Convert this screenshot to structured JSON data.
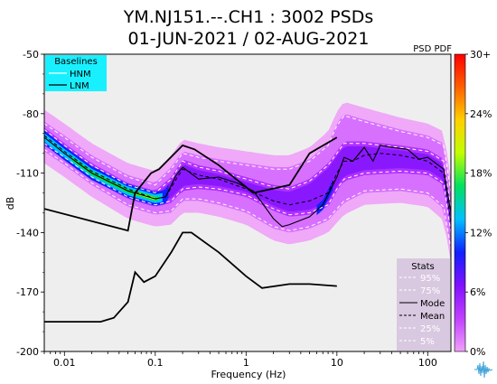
{
  "chart_data": {
    "type": "heatmap",
    "title": "YM.NJ151.--.CH1 : 3002 PSDs",
    "subtitle": "01-JUN-2021 / 02-AUG-2021",
    "xlabel": "Frequency (Hz)",
    "ylabel": "dB",
    "corner_label": "PSD PDF",
    "x_scale": "log",
    "xlim": [
      0.006,
      180
    ],
    "ylim": [
      -200,
      -50
    ],
    "x_ticks": [
      {
        "value": 0.01,
        "label": "0.01"
      },
      {
        "value": 0.1,
        "label": "0.1"
      },
      {
        "value": 1,
        "label": "1"
      },
      {
        "value": 10,
        "label": "10"
      },
      {
        "value": 100,
        "label": "100"
      }
    ],
    "y_ticks": [
      {
        "value": -50,
        "label": "-50"
      },
      {
        "value": -80,
        "label": "-80"
      },
      {
        "value": -110,
        "label": "-110"
      },
      {
        "value": -140,
        "label": "-140"
      },
      {
        "value": -170,
        "label": "-170"
      },
      {
        "value": -200,
        "label": "-200"
      }
    ],
    "colorbar": {
      "range": [
        0,
        30
      ],
      "unit": "%",
      "ticks": [
        {
          "value": 0,
          "label": "0%"
        },
        {
          "value": 6,
          "label": "6%"
        },
        {
          "value": 12,
          "label": "12%"
        },
        {
          "value": 18,
          "label": "18%"
        },
        {
          "value": 24,
          "label": "24%"
        },
        {
          "value": 30,
          "label": "30+"
        }
      ],
      "colors": [
        "#f0a0f8",
        "#c040ff",
        "#8010ff",
        "#1020ff",
        "#00c0ff",
        "#00e060",
        "#c0ff00",
        "#ffd000",
        "#ff6000",
        "#ff0000"
      ]
    },
    "legend_baselines": {
      "title": "Baselines",
      "entries": [
        {
          "name": "HNM",
          "color": "#ffffff"
        },
        {
          "name": "LNM",
          "color": "#000000"
        }
      ],
      "placement": "top-left",
      "background": "#19f0ff"
    },
    "legend_stats": {
      "title": "Stats",
      "entries": [
        {
          "name": "95%",
          "color": "#ffffff",
          "dash": true
        },
        {
          "name": "75%",
          "color": "#ffffff",
          "dash": true
        },
        {
          "name": "Mode",
          "color": "#000000",
          "dash": false
        },
        {
          "name": "Mean",
          "color": "#000000",
          "dash": true
        },
        {
          "name": "25%",
          "color": "#ffffff",
          "dash": true
        },
        {
          "name": "5%",
          "color": "#ffffff",
          "dash": true
        }
      ],
      "placement": "bottom-right",
      "background": "#d8c8e0"
    },
    "series": [
      {
        "name": "HNM",
        "x": [
          0.006,
          0.05,
          0.06,
          0.09,
          0.11,
          0.2,
          0.27,
          0.5,
          1.2,
          3,
          5,
          10
        ],
        "y": [
          -128,
          -139,
          -120,
          -110,
          -108,
          -96,
          -98,
          -106,
          -120,
          -116,
          -100,
          -92
        ]
      },
      {
        "name": "LNM",
        "x": [
          0.006,
          0.025,
          0.035,
          0.05,
          0.06,
          0.075,
          0.1,
          0.15,
          0.2,
          0.25,
          0.5,
          1,
          1.5,
          3,
          5,
          10
        ],
        "y": [
          -185,
          -185,
          -183,
          -175,
          -160,
          -165,
          -162,
          -150,
          -140,
          -140,
          -150,
          -162,
          -168,
          -166,
          -166,
          -167
        ]
      },
      {
        "name": "Mode",
        "x": [
          0.006,
          0.01,
          0.02,
          0.05,
          0.1,
          0.13,
          0.17,
          0.2,
          0.3,
          0.5,
          0.8,
          1.2,
          1.5,
          2,
          2.5,
          3,
          5,
          7,
          10,
          12,
          15,
          20,
          25,
          30,
          40,
          60,
          80,
          100,
          150,
          180
        ],
        "y": [
          -92,
          -100,
          -110,
          -119,
          -123,
          -122,
          -111,
          -107,
          -113,
          -112,
          -115,
          -119,
          -125,
          -133,
          -137,
          -136,
          -132,
          -126,
          -112,
          -102,
          -104,
          -97,
          -104,
          -96,
          -97,
          -98,
          -103,
          -102,
          -108,
          -130
        ]
      },
      {
        "name": "Mean",
        "x": [
          0.006,
          0.01,
          0.02,
          0.05,
          0.1,
          0.13,
          0.17,
          0.2,
          0.3,
          0.5,
          1,
          2,
          3,
          5,
          8,
          10,
          12,
          15,
          20,
          30,
          50,
          80,
          100,
          150,
          180
        ],
        "y": [
          -91,
          -99,
          -109,
          -118,
          -123,
          -122,
          -113,
          -108,
          -111,
          -113,
          -118,
          -124,
          -126,
          -124,
          -120,
          -110,
          -104,
          -104,
          -101,
          -100,
          -101,
          -103,
          -104,
          -110,
          -135
        ]
      },
      {
        "name": "95%",
        "x": [
          0.006,
          0.01,
          0.02,
          0.05,
          0.1,
          0.15,
          0.2,
          0.3,
          0.5,
          1,
          2,
          3,
          5,
          8,
          10,
          12,
          20,
          50,
          100,
          150,
          180
        ],
        "y": [
          -85,
          -92,
          -102,
          -112,
          -116,
          -108,
          -100,
          -102,
          -104,
          -106,
          -108,
          -108,
          -104,
          -96,
          -86,
          -81,
          -84,
          -89,
          -92,
          -96,
          -120
        ]
      },
      {
        "name": "75%",
        "x": [
          0.006,
          0.01,
          0.02,
          0.05,
          0.1,
          0.15,
          0.2,
          0.3,
          0.5,
          1,
          2,
          3,
          5,
          8,
          10,
          12,
          20,
          50,
          100,
          150,
          180
        ],
        "y": [
          -88,
          -96,
          -106,
          -116,
          -120,
          -113,
          -104,
          -107,
          -109,
          -113,
          -117,
          -118,
          -114,
          -106,
          -100,
          -95,
          -95,
          -97,
          -99,
          -104,
          -128
        ]
      },
      {
        "name": "25%",
        "x": [
          0.006,
          0.01,
          0.02,
          0.05,
          0.1,
          0.15,
          0.2,
          0.3,
          0.5,
          1,
          2,
          3,
          5,
          8,
          10,
          12,
          20,
          50,
          100,
          150,
          180
        ],
        "y": [
          -95,
          -102,
          -112,
          -122,
          -126,
          -124,
          -118,
          -117,
          -118,
          -121,
          -128,
          -131,
          -130,
          -126,
          -118,
          -113,
          -110,
          -109,
          -110,
          -115,
          -140
        ]
      },
      {
        "name": "5%",
        "x": [
          0.006,
          0.01,
          0.02,
          0.05,
          0.1,
          0.15,
          0.2,
          0.3,
          0.5,
          1,
          2,
          3,
          5,
          8,
          10,
          12,
          20,
          50,
          100,
          150,
          180
        ],
        "y": [
          -98,
          -105,
          -115,
          -126,
          -130,
          -129,
          -123,
          -123,
          -125,
          -129,
          -137,
          -139,
          -137,
          -133,
          -128,
          -124,
          -119,
          -118,
          -120,
          -127,
          -148
        ]
      }
    ]
  },
  "logo_icon": "seismogram-logo-icon"
}
